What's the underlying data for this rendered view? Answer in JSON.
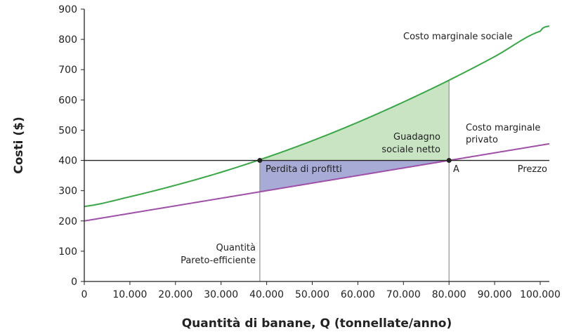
{
  "chart_data": {
    "type": "line",
    "xlabel": "Quantità di banane, Q (tonnellate/anno)",
    "ylabel": "Costi ($)",
    "xlim": [
      0,
      102000
    ],
    "ylim": [
      0,
      900
    ],
    "x_ticks": [
      0,
      10000,
      20000,
      30000,
      40000,
      50000,
      60000,
      70000,
      80000,
      90000,
      100000
    ],
    "x_tick_labels": [
      "0",
      "10.000",
      "20.000",
      "30.000",
      "40.000",
      "50.000",
      "60.000",
      "70.000",
      "80.000",
      "90.000",
      "100.000"
    ],
    "y_ticks": [
      0,
      100,
      200,
      300,
      400,
      500,
      600,
      700,
      800,
      900
    ],
    "y_tick_labels": [
      "0",
      "100",
      "200",
      "300",
      "400",
      "500",
      "600",
      "700",
      "800",
      "900"
    ],
    "grid": false,
    "series": [
      {
        "name": "Costo marginale sociale",
        "color": "#3aa647",
        "x": [
          0,
          10000,
          20000,
          30000,
          40000,
          50000,
          60000,
          70000,
          80000,
          90000,
          100000,
          102000
        ],
        "y": [
          248,
          280,
          318,
          361,
          410,
          465,
          526,
          593,
          665,
          743,
          827,
          844
        ]
      },
      {
        "name": "Costo marginale privato",
        "color": "#a04fa8",
        "x": [
          0,
          102000
        ],
        "y": [
          200,
          455
        ]
      },
      {
        "name": "Prezzo",
        "color": "#222222",
        "x": [
          0,
          102000
        ],
        "y": [
          400,
          400
        ]
      }
    ],
    "price": 400,
    "pareto_quantity": 38500,
    "market_quantity": 80000,
    "areas": [
      {
        "label": "Guadagno sociale netto",
        "color": "#c8e4c3"
      },
      {
        "label": "Perdita di profitti",
        "color": "#a7abd6"
      }
    ],
    "annotations": {
      "pareto": [
        "Quantità",
        "Pareto-efficiente"
      ],
      "point_a": "A",
      "social_label": "Costo marginale sociale",
      "private_label": [
        "Costo marginale",
        "privato"
      ],
      "price_label": "Prezzo",
      "gain_label": [
        "Guadagno",
        "sociale netto"
      ],
      "loss_label": "Perdita di profitti"
    }
  }
}
